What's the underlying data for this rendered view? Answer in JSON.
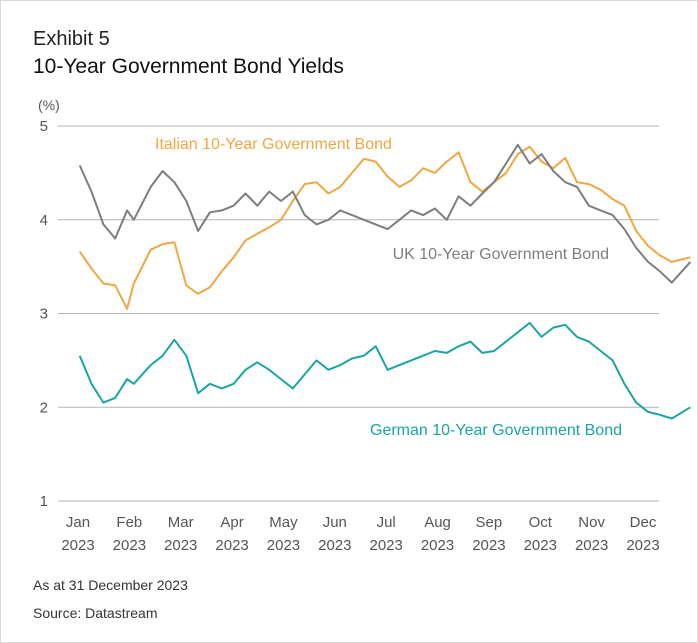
{
  "header": {
    "exhibit": "Exhibit 5",
    "title": "10-Year Government Bond Yields"
  },
  "footer": {
    "note": "As at 31 December 2023",
    "source": "Source: Datastream"
  },
  "chart_data": {
    "type": "line",
    "title": "10-Year Government Bond Yields",
    "ylabel": "(%)",
    "xlabel": "",
    "ylim": [
      1,
      5
    ],
    "yticks": [
      "1",
      "2",
      "3",
      "4",
      "5"
    ],
    "xticks": [
      {
        "month": "Jan",
        "year": "2023"
      },
      {
        "month": "Feb",
        "year": "2023"
      },
      {
        "month": "Mar",
        "year": "2023"
      },
      {
        "month": "Apr",
        "year": "2023"
      },
      {
        "month": "May",
        "year": "2023"
      },
      {
        "month": "Jun",
        "year": "2023"
      },
      {
        "month": "Jul",
        "year": "2023"
      },
      {
        "month": "Aug",
        "year": "2023"
      },
      {
        "month": "Sep",
        "year": "2023"
      },
      {
        "month": "Oct",
        "year": "2023"
      },
      {
        "month": "Nov",
        "year": "2023"
      },
      {
        "month": "Dec",
        "year": "2023"
      }
    ],
    "grid": true,
    "series": [
      {
        "name": "Italian 10-Year Government Bond",
        "color": "#f0a742",
        "x": [
          "2023-01-02",
          "2023-01-09",
          "2023-01-16",
          "2023-01-23",
          "2023-01-30",
          "2023-02-03",
          "2023-02-13",
          "2023-02-20",
          "2023-02-27",
          "2023-03-06",
          "2023-03-13",
          "2023-03-20",
          "2023-03-27",
          "2023-04-03",
          "2023-04-10",
          "2023-04-17",
          "2023-04-24",
          "2023-05-01",
          "2023-05-08",
          "2023-05-15",
          "2023-05-22",
          "2023-05-29",
          "2023-06-05",
          "2023-06-12",
          "2023-06-19",
          "2023-06-26",
          "2023-07-03",
          "2023-07-10",
          "2023-07-17",
          "2023-07-24",
          "2023-07-31",
          "2023-08-07",
          "2023-08-14",
          "2023-08-21",
          "2023-08-28",
          "2023-09-04",
          "2023-09-11",
          "2023-09-18",
          "2023-09-25",
          "2023-10-02",
          "2023-10-09",
          "2023-10-16",
          "2023-10-23",
          "2023-10-30",
          "2023-11-06",
          "2023-11-13",
          "2023-11-20",
          "2023-11-27",
          "2023-12-04",
          "2023-12-11",
          "2023-12-18",
          "2023-12-29"
        ],
        "values": [
          3.66,
          3.48,
          3.32,
          3.3,
          3.05,
          3.32,
          3.68,
          3.74,
          3.76,
          3.3,
          3.21,
          3.28,
          3.45,
          3.6,
          3.78,
          3.85,
          3.92,
          4.0,
          4.2,
          4.38,
          4.4,
          4.28,
          4.35,
          4.5,
          4.65,
          4.62,
          4.46,
          4.35,
          4.42,
          4.55,
          4.5,
          4.62,
          4.72,
          4.4,
          4.3,
          4.4,
          4.5,
          4.7,
          4.78,
          4.62,
          4.55,
          4.66,
          4.4,
          4.38,
          4.32,
          4.22,
          4.15,
          3.88,
          3.72,
          3.62,
          3.55,
          3.6
        ]
      },
      {
        "name": "UK 10-Year Government Bond",
        "color": "#7d7d7d",
        "x": [
          "2023-01-02",
          "2023-01-09",
          "2023-01-16",
          "2023-01-23",
          "2023-01-30",
          "2023-02-03",
          "2023-02-13",
          "2023-02-20",
          "2023-02-27",
          "2023-03-06",
          "2023-03-13",
          "2023-03-20",
          "2023-03-27",
          "2023-04-03",
          "2023-04-10",
          "2023-04-17",
          "2023-04-24",
          "2023-05-01",
          "2023-05-08",
          "2023-05-15",
          "2023-05-22",
          "2023-05-29",
          "2023-06-05",
          "2023-06-12",
          "2023-06-19",
          "2023-06-26",
          "2023-07-03",
          "2023-07-10",
          "2023-07-17",
          "2023-07-24",
          "2023-07-31",
          "2023-08-07",
          "2023-08-14",
          "2023-08-21",
          "2023-08-28",
          "2023-09-04",
          "2023-09-11",
          "2023-09-18",
          "2023-09-25",
          "2023-10-02",
          "2023-10-09",
          "2023-10-16",
          "2023-10-23",
          "2023-10-30",
          "2023-11-06",
          "2023-11-13",
          "2023-11-20",
          "2023-11-27",
          "2023-12-04",
          "2023-12-11",
          "2023-12-18",
          "2023-12-29"
        ],
        "values": [
          4.58,
          4.3,
          3.95,
          3.8,
          4.1,
          4.0,
          4.35,
          4.52,
          4.4,
          4.2,
          3.88,
          4.08,
          4.1,
          4.15,
          4.28,
          4.15,
          4.3,
          4.2,
          4.3,
          4.05,
          3.95,
          4.0,
          4.1,
          4.05,
          4.0,
          3.95,
          3.9,
          4.0,
          4.1,
          4.05,
          4.12,
          4.0,
          4.25,
          4.15,
          4.28,
          4.4,
          4.6,
          4.8,
          4.6,
          4.7,
          4.52,
          4.4,
          4.35,
          4.15,
          4.1,
          4.05,
          3.9,
          3.7,
          3.55,
          3.45,
          3.33,
          3.55
        ]
      },
      {
        "name": "German 10-Year Government Bond",
        "color": "#1aa4a4",
        "x": [
          "2023-01-02",
          "2023-01-09",
          "2023-01-16",
          "2023-01-23",
          "2023-01-30",
          "2023-02-03",
          "2023-02-13",
          "2023-02-20",
          "2023-02-27",
          "2023-03-06",
          "2023-03-13",
          "2023-03-20",
          "2023-03-27",
          "2023-04-03",
          "2023-04-10",
          "2023-04-17",
          "2023-04-24",
          "2023-05-01",
          "2023-05-08",
          "2023-05-15",
          "2023-05-22",
          "2023-05-29",
          "2023-06-05",
          "2023-06-12",
          "2023-06-19",
          "2023-06-26",
          "2023-07-03",
          "2023-07-10",
          "2023-07-17",
          "2023-07-24",
          "2023-07-31",
          "2023-08-07",
          "2023-08-14",
          "2023-08-21",
          "2023-08-28",
          "2023-09-04",
          "2023-09-11",
          "2023-09-18",
          "2023-09-25",
          "2023-10-02",
          "2023-10-09",
          "2023-10-16",
          "2023-10-23",
          "2023-10-30",
          "2023-11-06",
          "2023-11-13",
          "2023-11-20",
          "2023-11-27",
          "2023-12-04",
          "2023-12-11",
          "2023-12-18",
          "2023-12-29"
        ],
        "values": [
          2.55,
          2.25,
          2.05,
          2.1,
          2.3,
          2.25,
          2.45,
          2.55,
          2.72,
          2.55,
          2.15,
          2.25,
          2.2,
          2.25,
          2.4,
          2.48,
          2.4,
          2.3,
          2.2,
          2.35,
          2.5,
          2.4,
          2.45,
          2.52,
          2.55,
          2.65,
          2.4,
          2.45,
          2.5,
          2.55,
          2.6,
          2.58,
          2.65,
          2.7,
          2.58,
          2.6,
          2.7,
          2.8,
          2.9,
          2.75,
          2.85,
          2.88,
          2.75,
          2.7,
          2.6,
          2.5,
          2.25,
          2.05,
          1.95,
          1.92,
          1.88,
          2.0
        ]
      }
    ]
  }
}
